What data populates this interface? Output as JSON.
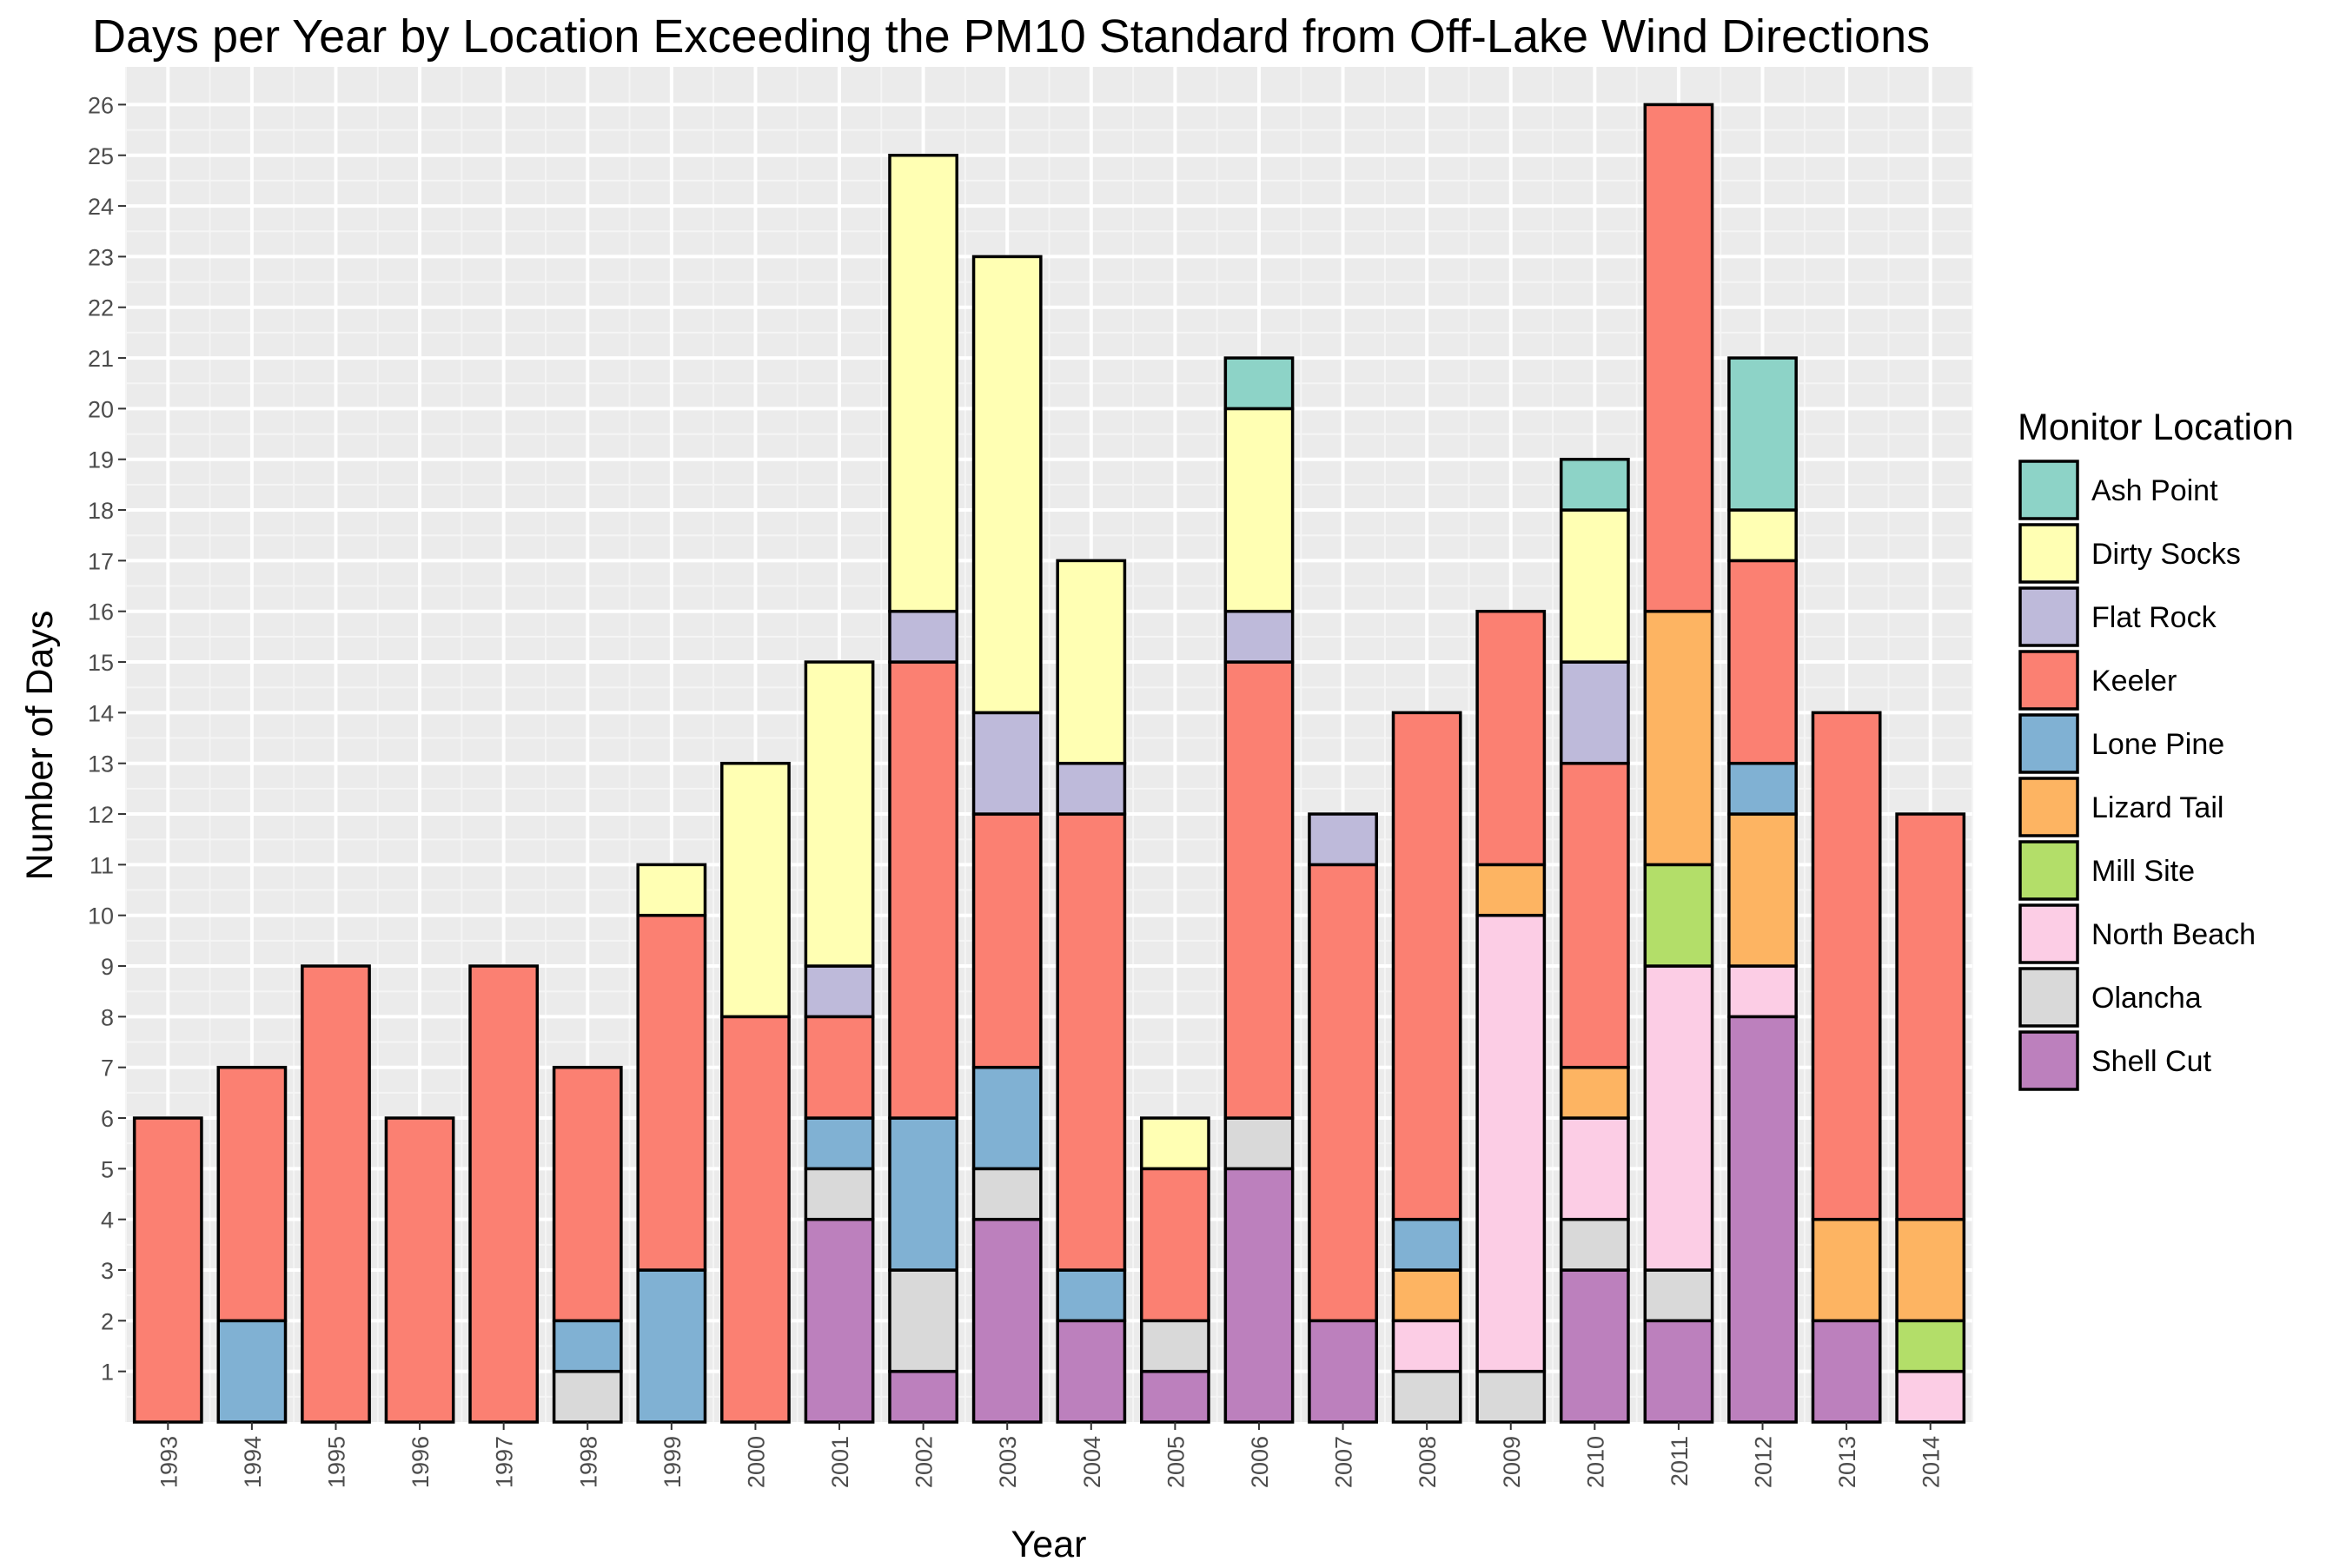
{
  "chart_data": {
    "type": "bar",
    "stacked": true,
    "title": "Days per Year by Location Exceeding the PM10 Standard from Off-Lake Wind Directions",
    "xlabel": "Year",
    "ylabel": "Number of Days",
    "ylim": [
      0,
      26.5
    ],
    "y_ticks": [
      1,
      2,
      3,
      4,
      5,
      6,
      7,
      8,
      9,
      10,
      11,
      12,
      13,
      14,
      15,
      16,
      17,
      18,
      19,
      20,
      21,
      22,
      23,
      24,
      25,
      26
    ],
    "grid": true,
    "legend": {
      "title": "Monitor Location",
      "placement": "right"
    },
    "categories": [
      "1993",
      "1994",
      "1995",
      "1996",
      "1997",
      "1998",
      "1999",
      "2000",
      "2001",
      "2002",
      "2003",
      "2004",
      "2005",
      "2006",
      "2007",
      "2008",
      "2009",
      "2010",
      "2011",
      "2012",
      "2013",
      "2014"
    ],
    "series": [
      {
        "name": "Ash Point",
        "color": "#8DD3C7",
        "values": [
          0,
          0,
          0,
          0,
          0,
          0,
          0,
          0,
          0,
          0,
          0,
          0,
          0,
          1,
          0,
          0,
          0,
          1,
          0,
          3,
          0,
          0
        ]
      },
      {
        "name": "Dirty Socks",
        "color": "#FFFFB3",
        "values": [
          0,
          0,
          0,
          0,
          0,
          0,
          1,
          5,
          6,
          9,
          9,
          4,
          1,
          4,
          0,
          0,
          0,
          3,
          0,
          1,
          0,
          0
        ]
      },
      {
        "name": "Flat Rock",
        "color": "#BEBADA",
        "values": [
          0,
          0,
          0,
          0,
          0,
          0,
          0,
          0,
          1,
          1,
          2,
          1,
          0,
          1,
          1,
          0,
          0,
          2,
          0,
          0,
          0,
          0
        ]
      },
      {
        "name": "Keeler",
        "color": "#FB8072",
        "values": [
          6,
          5,
          9,
          6,
          9,
          5,
          7,
          8,
          2,
          9,
          5,
          9,
          3,
          9,
          9,
          10,
          5,
          6,
          10,
          4,
          10,
          8
        ]
      },
      {
        "name": "Lone Pine",
        "color": "#80B1D3",
        "values": [
          0,
          2,
          0,
          0,
          0,
          1,
          3,
          0,
          1,
          3,
          2,
          1,
          0,
          0,
          0,
          1,
          0,
          0,
          0,
          1,
          0,
          0
        ]
      },
      {
        "name": "Lizard Tail",
        "color": "#FDB462",
        "values": [
          0,
          0,
          0,
          0,
          0,
          0,
          0,
          0,
          0,
          0,
          0,
          0,
          0,
          0,
          0,
          1,
          1,
          1,
          5,
          3,
          2,
          2
        ]
      },
      {
        "name": "Mill Site",
        "color": "#B3DE69",
        "values": [
          0,
          0,
          0,
          0,
          0,
          0,
          0,
          0,
          0,
          0,
          0,
          0,
          0,
          0,
          0,
          0,
          0,
          0,
          2,
          0,
          0,
          1
        ]
      },
      {
        "name": "North Beach",
        "color": "#FCCDE5",
        "values": [
          0,
          0,
          0,
          0,
          0,
          0,
          0,
          0,
          0,
          0,
          0,
          0,
          0,
          0,
          0,
          1,
          9,
          2,
          6,
          1,
          0,
          1
        ]
      },
      {
        "name": "Olancha",
        "color": "#D9D9D9",
        "values": [
          0,
          0,
          0,
          0,
          0,
          1,
          0,
          0,
          1,
          2,
          1,
          0,
          1,
          1,
          0,
          1,
          1,
          1,
          1,
          0,
          0,
          0
        ]
      },
      {
        "name": "Shell Cut",
        "color": "#BC80BD",
        "values": [
          0,
          0,
          0,
          0,
          0,
          0,
          0,
          0,
          4,
          1,
          4,
          2,
          1,
          5,
          2,
          0,
          0,
          3,
          2,
          8,
          2,
          0
        ]
      }
    ]
  }
}
